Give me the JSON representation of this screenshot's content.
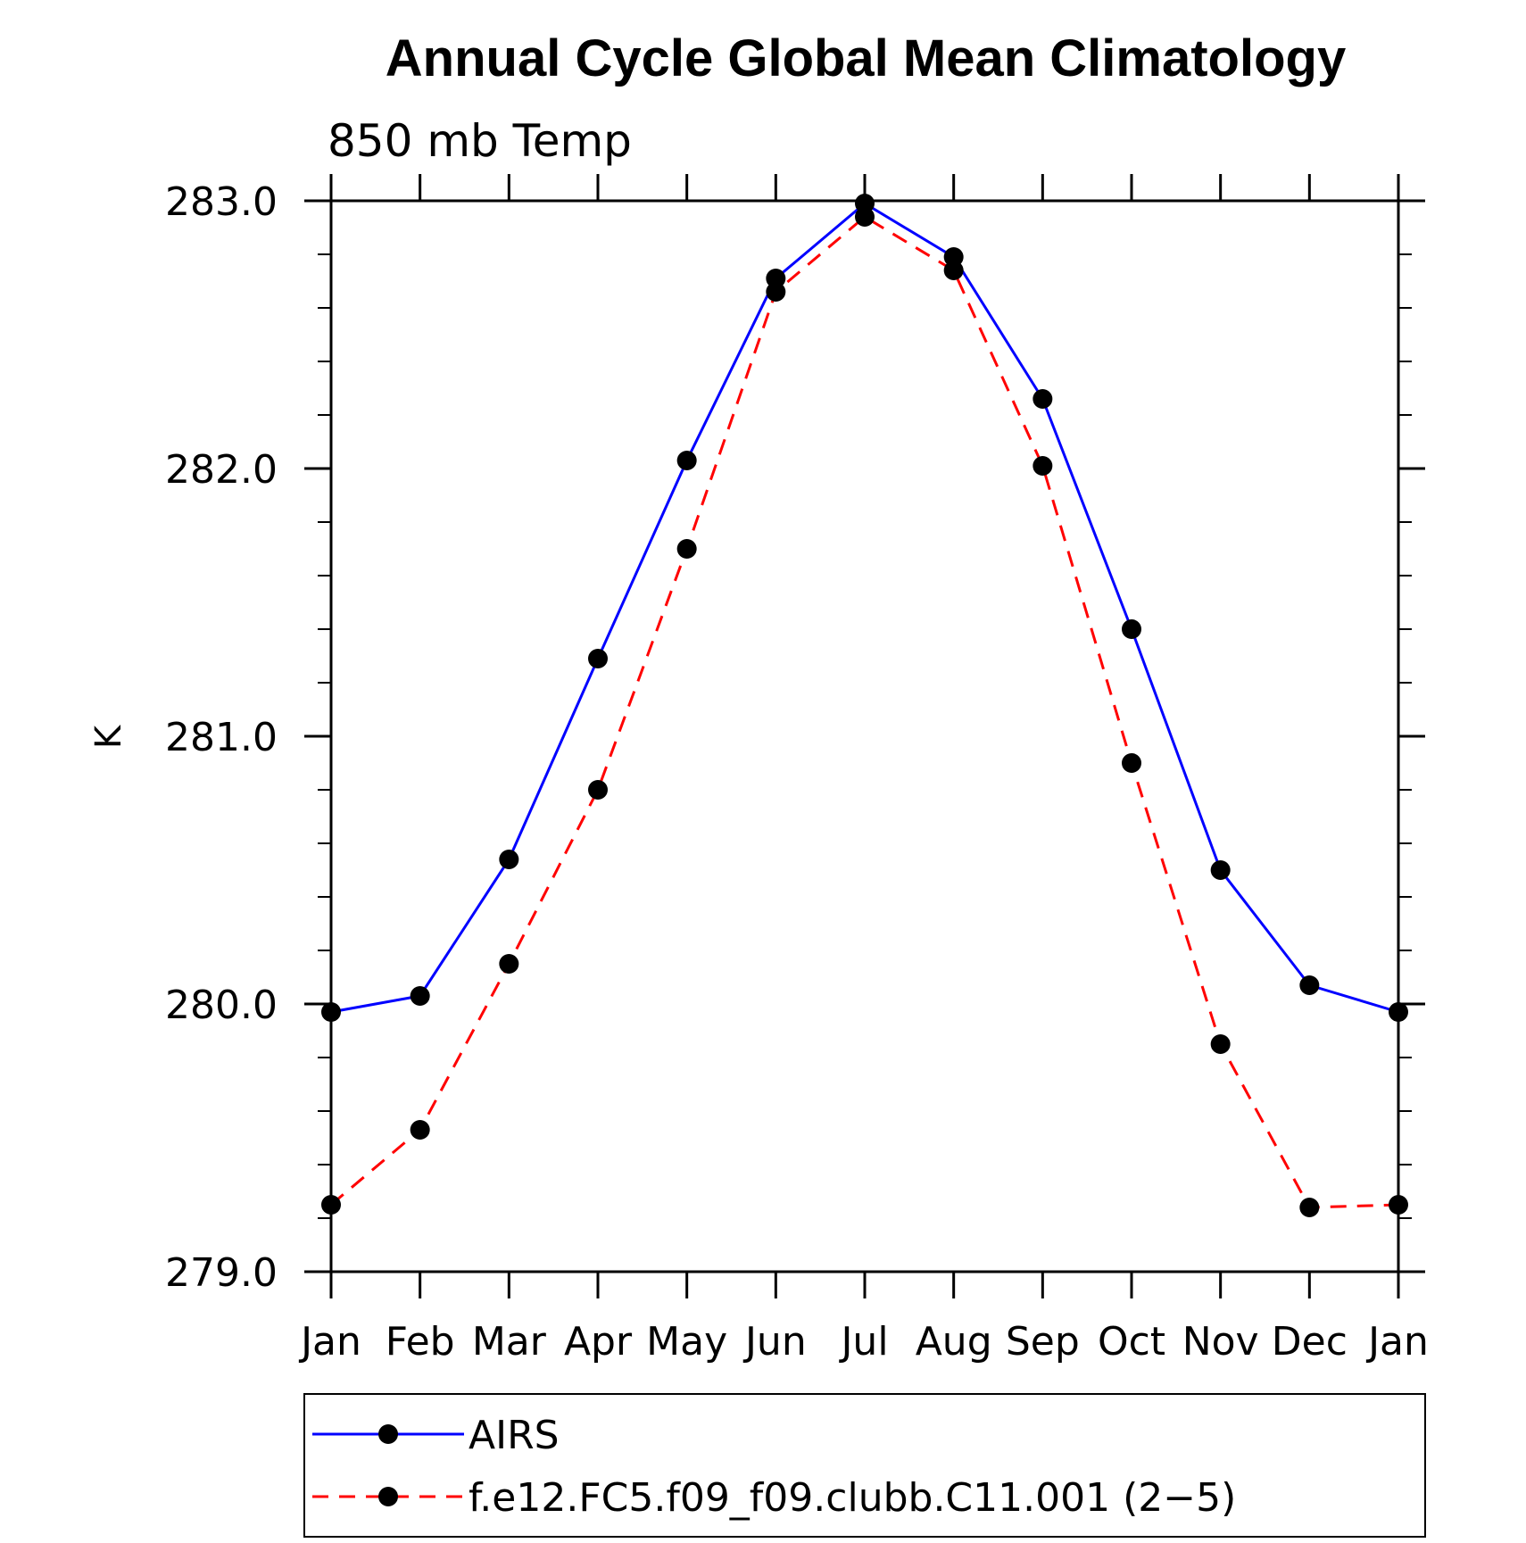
{
  "chart_data": {
    "type": "line",
    "title": "Annual Cycle Global Mean Climatology",
    "subtitle": "850 mb Temp",
    "xlabel": "",
    "ylabel": "K",
    "categories": [
      "Jan",
      "Feb",
      "Mar",
      "Apr",
      "May",
      "Jun",
      "Jul",
      "Aug",
      "Sep",
      "Oct",
      "Nov",
      "Dec",
      "Jan"
    ],
    "ylim": [
      279.0,
      283.0
    ],
    "yticks": [
      279.0,
      280.0,
      281.0,
      282.0,
      283.0
    ],
    "ytick_labels": [
      "279.0",
      "280.0",
      "281.0",
      "282.0",
      "283.0"
    ],
    "grid": false,
    "legend_position": "bottom",
    "series": [
      {
        "name": "AIRS",
        "color": "#0000ff",
        "line_style": "solid",
        "marker": "filled-circle",
        "values": [
          279.97,
          280.03,
          280.54,
          281.29,
          282.03,
          282.71,
          282.99,
          282.79,
          282.26,
          281.4,
          280.5,
          280.07,
          279.97
        ]
      },
      {
        "name": "f.e12.FC5.f09_f09.clubb.C11.001 (2−5)",
        "color": "#ff0000",
        "line_style": "dashed",
        "marker": "filled-circle",
        "values": [
          279.25,
          279.53,
          280.15,
          280.8,
          281.7,
          282.66,
          282.94,
          282.74,
          282.01,
          280.9,
          279.85,
          279.24,
          279.25
        ]
      }
    ]
  }
}
